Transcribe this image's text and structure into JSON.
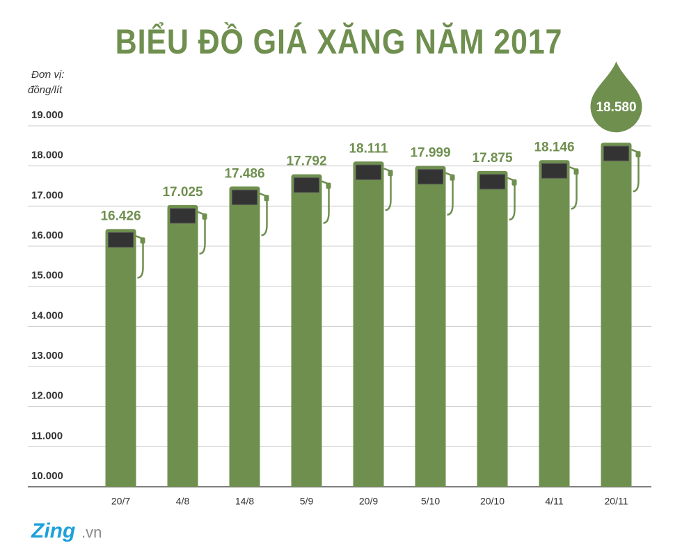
{
  "chart_data": {
    "type": "bar",
    "title": "BIỂU ĐỒ GIÁ XĂNG NĂM 2017",
    "y_label": [
      "Đơn vị:",
      "đồng/lít"
    ],
    "categories": [
      "20/7",
      "4/8",
      "14/8",
      "5/9",
      "20/9",
      "5/10",
      "20/10",
      "4/11",
      "20/11"
    ],
    "values": [
      16426,
      17025,
      17486,
      17792,
      18111,
      17999,
      17875,
      18146,
      18580
    ],
    "value_labels": [
      "16.426",
      "17.025",
      "17.486",
      "17.792",
      "18.111",
      "17.999",
      "17.875",
      "18.146",
      "18.580"
    ],
    "color": "#6f8f4f",
    "ylim": [
      10000,
      19000
    ],
    "yticks": [
      {
        "value": 10000,
        "label": "10.000"
      },
      {
        "value": 11000,
        "label": "11.000"
      },
      {
        "value": 12000,
        "label": "12.000"
      },
      {
        "value": 13000,
        "label": "13.000"
      },
      {
        "value": 14000,
        "label": "14.000"
      },
      {
        "value": 15000,
        "label": "15.000"
      },
      {
        "value": 16000,
        "label": "16.000"
      },
      {
        "value": 17000,
        "label": "17.000"
      },
      {
        "value": 18000,
        "label": "18.000"
      },
      {
        "value": 19000,
        "label": "19.000"
      }
    ],
    "grid": true,
    "logo": {
      "brand": "Zing",
      "domain": ".vn"
    }
  }
}
